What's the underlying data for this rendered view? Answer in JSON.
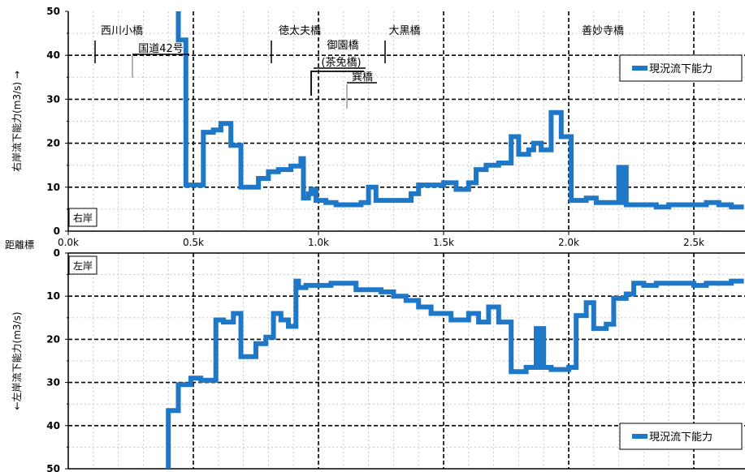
{
  "chart_data": {
    "type": "line",
    "x_axis": {
      "label": "距離標",
      "ticks": [
        "0.0k",
        "0.5k",
        "1.0k",
        "1.5k",
        "2.0k",
        "2.5k"
      ],
      "tick_values": [
        0,
        0.5,
        1.0,
        1.5,
        2.0,
        2.5
      ],
      "range": [
        0,
        2.7
      ]
    },
    "panels": [
      {
        "side_label": "右岸",
        "ylabel": "右岸流下能力(m3/s) →",
        "ylim": [
          0,
          50
        ],
        "y_ticks": [
          "0",
          "10",
          "20",
          "30",
          "40",
          "50"
        ],
        "y_tick_values": [
          0,
          10,
          20,
          30,
          40,
          50
        ],
        "legend": "現況流下能力",
        "series": [
          {
            "name": "現況流下能力",
            "points": [
              [
                0.44,
                50
              ],
              [
                0.44,
                43.5
              ],
              [
                0.47,
                43.5
              ],
              [
                0.47,
                10.5
              ],
              [
                0.54,
                10.5
              ],
              [
                0.54,
                22.5
              ],
              [
                0.58,
                22.5
              ],
              [
                0.58,
                23
              ],
              [
                0.61,
                23
              ],
              [
                0.61,
                24.5
              ],
              [
                0.65,
                24.5
              ],
              [
                0.65,
                19.5
              ],
              [
                0.69,
                19.5
              ],
              [
                0.69,
                10
              ],
              [
                0.76,
                10
              ],
              [
                0.76,
                12
              ],
              [
                0.8,
                12
              ],
              [
                0.8,
                13.5
              ],
              [
                0.84,
                13.5
              ],
              [
                0.84,
                14
              ],
              [
                0.89,
                14
              ],
              [
                0.89,
                14.8
              ],
              [
                0.93,
                14.8
              ],
              [
                0.93,
                16.5
              ],
              [
                0.94,
                16.5
              ],
              [
                0.94,
                7.5
              ],
              [
                0.96,
                7.5
              ],
              [
                0.96,
                8.5
              ],
              [
                0.97,
                8.5
              ],
              [
                0.97,
                9.5
              ],
              [
                0.99,
                9.5
              ],
              [
                0.99,
                7
              ],
              [
                1.03,
                7
              ],
              [
                1.03,
                6.5
              ],
              [
                1.07,
                6.5
              ],
              [
                1.07,
                6
              ],
              [
                1.17,
                6
              ],
              [
                1.17,
                6.5
              ],
              [
                1.2,
                6.5
              ],
              [
                1.2,
                10
              ],
              [
                1.23,
                10
              ],
              [
                1.23,
                7
              ],
              [
                1.37,
                7
              ],
              [
                1.37,
                8.5
              ],
              [
                1.4,
                8.5
              ],
              [
                1.4,
                10.5
              ],
              [
                1.5,
                10.5
              ],
              [
                1.5,
                11
              ],
              [
                1.55,
                11
              ],
              [
                1.55,
                9.5
              ],
              [
                1.6,
                9.5
              ],
              [
                1.6,
                11
              ],
              [
                1.63,
                11
              ],
              [
                1.63,
                14
              ],
              [
                1.67,
                14
              ],
              [
                1.67,
                15
              ],
              [
                1.72,
                15
              ],
              [
                1.72,
                15.5
              ],
              [
                1.77,
                15.5
              ],
              [
                1.77,
                21.5
              ],
              [
                1.8,
                21.5
              ],
              [
                1.8,
                17.5
              ],
              [
                1.84,
                17.5
              ],
              [
                1.84,
                18.5
              ],
              [
                1.86,
                18.5
              ],
              [
                1.86,
                20
              ],
              [
                1.89,
                20
              ],
              [
                1.89,
                18.5
              ],
              [
                1.93,
                18.5
              ],
              [
                1.93,
                27
              ],
              [
                1.97,
                27
              ],
              [
                1.97,
                21.5
              ],
              [
                2.01,
                21.5
              ],
              [
                2.01,
                7
              ],
              [
                2.07,
                7
              ],
              [
                2.07,
                7.5
              ],
              [
                2.11,
                7.5
              ],
              [
                2.11,
                6.5
              ],
              [
                2.2,
                6.5
              ],
              [
                2.2,
                14.5
              ],
              [
                2.21,
                14.5
              ],
              [
                2.21,
                6.5
              ],
              [
                2.22,
                6.5
              ],
              [
                2.22,
                14.5
              ],
              [
                2.23,
                14.5
              ],
              [
                2.23,
                6
              ],
              [
                2.35,
                6
              ],
              [
                2.35,
                5.5
              ],
              [
                2.4,
                5.5
              ],
              [
                2.4,
                6
              ],
              [
                2.55,
                6
              ],
              [
                2.55,
                6.5
              ],
              [
                2.6,
                6.5
              ],
              [
                2.6,
                6
              ],
              [
                2.65,
                6
              ],
              [
                2.65,
                5.5
              ],
              [
                2.7,
                5.5
              ]
            ]
          }
        ],
        "bridges": [
          "西川小橋",
          "国道42号",
          "徳太夫橋",
          "御園橋",
          "(茶免橋)",
          "巽橋",
          "大黒橋",
          "善妙寺橋"
        ]
      },
      {
        "side_label": "左岸",
        "ylabel": "←左岸流下能力(m3/s)",
        "ylim": [
          50,
          0
        ],
        "y_ticks": [
          "0",
          "10",
          "20",
          "30",
          "40",
          "50"
        ],
        "y_tick_values": [
          0,
          10,
          20,
          30,
          40,
          50
        ],
        "legend": "現況流下能力",
        "series": [
          {
            "name": "現況流下能力",
            "points": [
              [
                0.4,
                50
              ],
              [
                0.4,
                36.5
              ],
              [
                0.44,
                36.5
              ],
              [
                0.44,
                30.5
              ],
              [
                0.49,
                30.5
              ],
              [
                0.49,
                29
              ],
              [
                0.53,
                29
              ],
              [
                0.53,
                29.5
              ],
              [
                0.59,
                29.5
              ],
              [
                0.59,
                15.5
              ],
              [
                0.62,
                15.5
              ],
              [
                0.62,
                16
              ],
              [
                0.66,
                16
              ],
              [
                0.66,
                14
              ],
              [
                0.69,
                14
              ],
              [
                0.69,
                24
              ],
              [
                0.75,
                24
              ],
              [
                0.75,
                21
              ],
              [
                0.79,
                21
              ],
              [
                0.79,
                19.5
              ],
              [
                0.82,
                19.5
              ],
              [
                0.82,
                14
              ],
              [
                0.85,
                14
              ],
              [
                0.85,
                15.5
              ],
              [
                0.88,
                15.5
              ],
              [
                0.88,
                17
              ],
              [
                0.91,
                17
              ],
              [
                0.91,
                6.5
              ],
              [
                0.92,
                6.5
              ],
              [
                0.92,
                8
              ],
              [
                0.95,
                8
              ],
              [
                0.95,
                7.5
              ],
              [
                1.05,
                7.5
              ],
              [
                1.05,
                7
              ],
              [
                1.15,
                7
              ],
              [
                1.15,
                8.5
              ],
              [
                1.25,
                8.5
              ],
              [
                1.25,
                9
              ],
              [
                1.3,
                9
              ],
              [
                1.3,
                10
              ],
              [
                1.35,
                10
              ],
              [
                1.35,
                11
              ],
              [
                1.4,
                11
              ],
              [
                1.4,
                12.5
              ],
              [
                1.45,
                12.5
              ],
              [
                1.45,
                14
              ],
              [
                1.53,
                14
              ],
              [
                1.53,
                15.5
              ],
              [
                1.6,
                15.5
              ],
              [
                1.6,
                14
              ],
              [
                1.64,
                14
              ],
              [
                1.64,
                16
              ],
              [
                1.68,
                16
              ],
              [
                1.68,
                12.5
              ],
              [
                1.72,
                12.5
              ],
              [
                1.72,
                16
              ],
              [
                1.77,
                16
              ],
              [
                1.77,
                27.5
              ],
              [
                1.83,
                27.5
              ],
              [
                1.83,
                26.5
              ],
              [
                1.87,
                26.5
              ],
              [
                1.87,
                17.5
              ],
              [
                1.88,
                17.5
              ],
              [
                1.88,
                26.5
              ],
              [
                1.89,
                26.5
              ],
              [
                1.89,
                17.5
              ],
              [
                1.9,
                17.5
              ],
              [
                1.9,
                26.5
              ],
              [
                1.93,
                26.5
              ],
              [
                1.93,
                27
              ],
              [
                2.0,
                27
              ],
              [
                2.0,
                26.5
              ],
              [
                2.03,
                26.5
              ],
              [
                2.03,
                14.5
              ],
              [
                2.07,
                14.5
              ],
              [
                2.07,
                11.5
              ],
              [
                2.1,
                11.5
              ],
              [
                2.1,
                17.5
              ],
              [
                2.15,
                17.5
              ],
              [
                2.15,
                16.5
              ],
              [
                2.18,
                16.5
              ],
              [
                2.18,
                10.5
              ],
              [
                2.23,
                10.5
              ],
              [
                2.23,
                9.5
              ],
              [
                2.26,
                9.5
              ],
              [
                2.26,
                7
              ],
              [
                2.3,
                7
              ],
              [
                2.3,
                7.5
              ],
              [
                2.35,
                7.5
              ],
              [
                2.35,
                7
              ],
              [
                2.5,
                7
              ],
              [
                2.5,
                7.5
              ],
              [
                2.55,
                7.5
              ],
              [
                2.55,
                7
              ],
              [
                2.65,
                7
              ],
              [
                2.65,
                6.5
              ],
              [
                2.7,
                6.5
              ]
            ]
          }
        ]
      }
    ],
    "colors": {
      "line": "#1f77c8",
      "grid_dash": "#000000"
    }
  }
}
